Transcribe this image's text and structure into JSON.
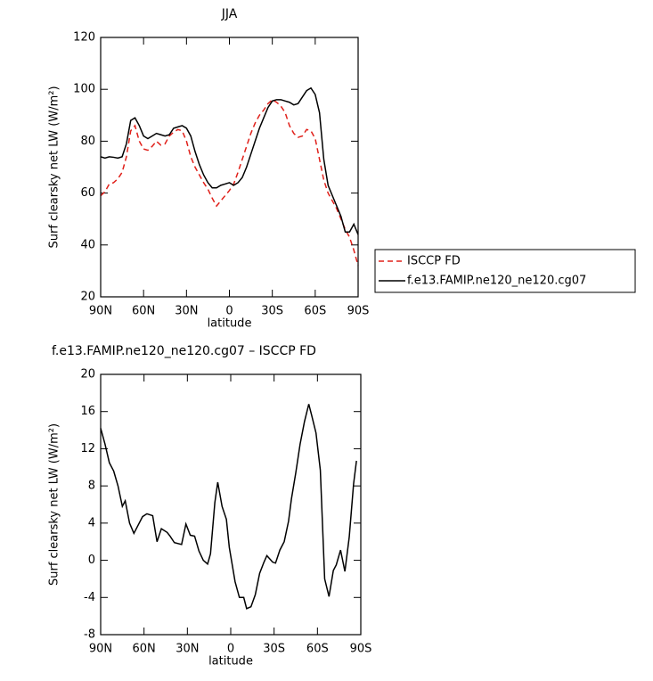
{
  "chart_data": [
    {
      "type": "line",
      "title": "JJA",
      "xlabel": "latitude",
      "ylabel": "Surf clearsky net LW (W/m²)",
      "x": [
        90,
        87,
        84,
        81,
        78,
        75,
        72,
        69,
        66,
        63,
        60,
        57,
        54,
        51,
        48,
        45,
        42,
        39,
        36,
        33,
        30,
        27,
        24,
        21,
        18,
        15,
        12,
        9,
        6,
        3,
        0,
        -3,
        -6,
        -9,
        -12,
        -15,
        -18,
        -21,
        -24,
        -27,
        -30,
        -33,
        -36,
        -39,
        -42,
        -45,
        -48,
        -51,
        -54,
        -57,
        -60,
        -63,
        -66,
        -69,
        -72,
        -75,
        -78,
        -81,
        -84,
        -87,
        -90
      ],
      "series": [
        {
          "name": "ISCCP FD",
          "color": "#e0201a",
          "dashed": true,
          "values": [
            59,
            60.5,
            63.5,
            64,
            65.5,
            68,
            74,
            84,
            86,
            80,
            77,
            76.5,
            78,
            80,
            78.5,
            79,
            82,
            83.5,
            84.5,
            84,
            80,
            74,
            70,
            67,
            64,
            61.5,
            58,
            55,
            57,
            59,
            61,
            63.5,
            68,
            73,
            78,
            83,
            87,
            90,
            92,
            94.5,
            96,
            95,
            93.5,
            91,
            86,
            83,
            81.5,
            82,
            84.5,
            84,
            81,
            73,
            65,
            60,
            57,
            54,
            50,
            46,
            43,
            38,
            32
          ]
        },
        {
          "name": "f.e13.FAMIP.ne120_ne120.cg07",
          "color": "#000000",
          "dashed": false,
          "values": [
            74,
            73.5,
            74,
            73.8,
            73.5,
            74,
            79,
            88,
            89,
            86,
            82,
            81,
            82,
            83,
            82.5,
            82,
            82.5,
            85,
            85.5,
            86,
            85,
            82,
            76,
            71,
            67,
            64,
            62,
            62,
            63,
            63.5,
            64,
            63,
            64,
            66,
            70,
            75,
            80,
            85,
            89,
            93,
            95.5,
            96,
            96,
            95.5,
            95,
            94,
            94.5,
            97,
            99.5,
            100.5,
            98,
            91,
            73,
            63,
            59,
            55,
            51,
            45,
            45,
            48,
            44
          ]
        }
      ],
      "xlim": [
        90,
        -90
      ],
      "xticks": [
        {
          "value": 90,
          "label": "90N"
        },
        {
          "value": 60,
          "label": "60N"
        },
        {
          "value": 30,
          "label": "30N"
        },
        0,
        {
          "value": -30,
          "label": "30S"
        },
        {
          "value": -60,
          "label": "60S"
        },
        {
          "value": -90,
          "label": "90S"
        }
      ],
      "ylim": [
        20,
        120
      ],
      "yticks": [
        20,
        40,
        60,
        80,
        100,
        120
      ],
      "legend": "outside right"
    },
    {
      "type": "line",
      "title": "f.e13.FAMIP.ne120_ne120.cg07 – ISCCP FD",
      "xlabel": "latitude",
      "ylabel": "Surf clearsky net LW (W/m²)",
      "x": [
        90,
        87,
        84,
        81,
        78,
        75,
        73,
        70,
        67,
        64,
        61,
        58,
        54,
        51,
        48,
        44,
        42,
        39,
        34,
        31,
        28,
        25,
        22,
        19,
        16,
        14,
        11,
        9,
        6,
        3,
        1,
        -3,
        -6,
        -9,
        -11,
        -14,
        -17,
        -20,
        -23,
        -25,
        -29,
        -31,
        -34,
        -37,
        -40,
        -42,
        -45,
        -48,
        -51,
        -54,
        -56,
        -59,
        -62,
        -65,
        -68,
        -71,
        -73,
        -76,
        -79,
        -82,
        -85,
        -87
      ],
      "series": [
        {
          "name": "f.e13.FAMIP.ne120_ne120.cg07 – ISCCP FD",
          "color": "#000000",
          "dashed": false,
          "values": [
            14.2,
            12.5,
            10.5,
            9.6,
            8,
            5.8,
            6.4,
            4,
            2.9,
            3.8,
            4.7,
            5,
            4.8,
            2,
            3.4,
            3,
            2.6,
            1.9,
            1.7,
            3.9,
            2.7,
            2.6,
            1,
            0,
            -0.4,
            0.7,
            6.2,
            8.4,
            5.8,
            4.4,
            1.4,
            -2.3,
            -4,
            -4,
            -5.2,
            -5,
            -3.7,
            -1.4,
            -0.2,
            0.5,
            -0.2,
            -0.3,
            1.1,
            2,
            4.2,
            6.6,
            9.4,
            12.5,
            14.9,
            16.8,
            15.6,
            13.7,
            9.7,
            -2,
            -3.9,
            -1.1,
            -0.5,
            1.1,
            -1.2,
            2.5,
            8.2,
            10.7
          ]
        }
      ],
      "xlim": [
        90,
        -90
      ],
      "xticks": [
        {
          "value": 90,
          "label": "90N"
        },
        {
          "value": 60,
          "label": "60N"
        },
        {
          "value": 30,
          "label": "30N"
        },
        0,
        {
          "value": -30,
          "label": "30S"
        },
        {
          "value": -60,
          "label": "60S"
        },
        {
          "value": -90,
          "label": "90S"
        }
      ],
      "ylim": [
        -8,
        20
      ],
      "yticks": [
        -8,
        -4,
        0,
        4,
        8,
        12,
        16,
        20
      ]
    }
  ]
}
